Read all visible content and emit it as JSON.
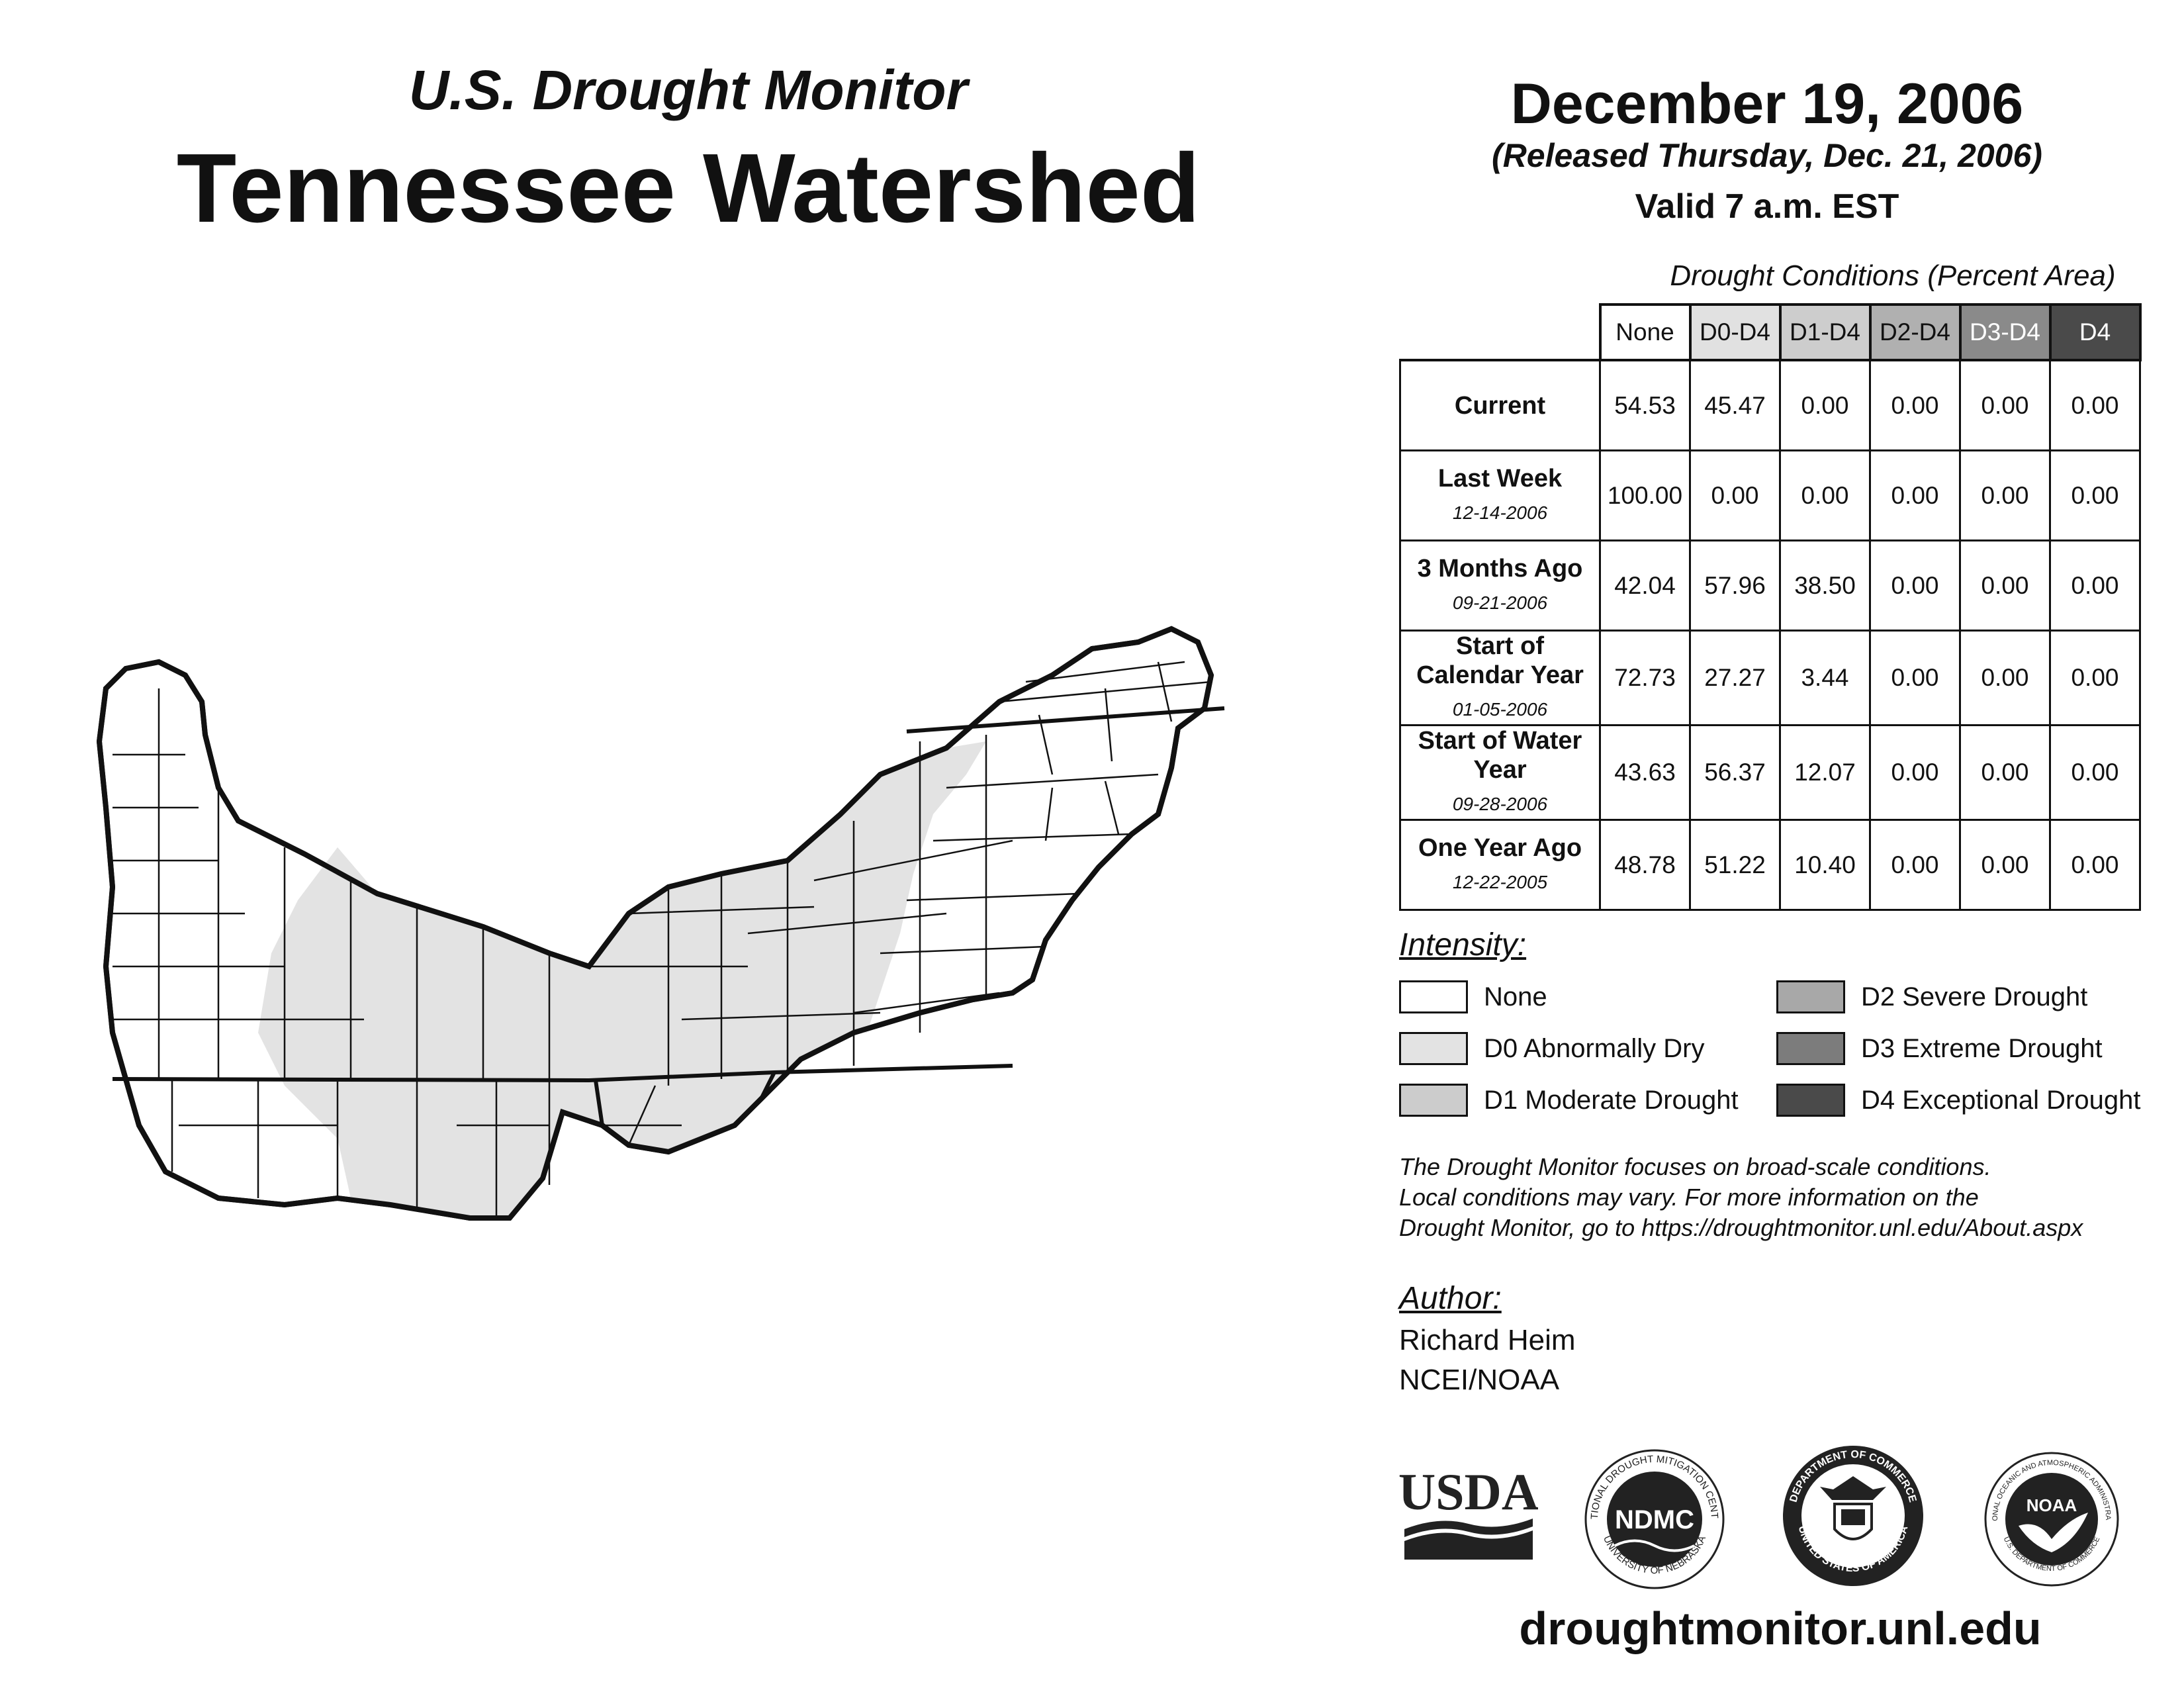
{
  "header": {
    "subtitle": "U.S. Drought Monitor",
    "title": "Tennessee Watershed"
  },
  "date_info": {
    "date": "December 19, 2006",
    "released": "(Released Thursday, Dec. 21, 2006)",
    "valid": "Valid 7 a.m. EST"
  },
  "conditions": {
    "title": "Drought Conditions (Percent Area)",
    "columns": [
      "None",
      "D0-D4",
      "D1-D4",
      "D2-D4",
      "D3-D4",
      "D4"
    ],
    "column_colors": [
      "#ffffff",
      "#e1e1e1",
      "#cdcdcd",
      "#b0b0b0",
      "#8a8a8a",
      "#4a4a4a"
    ],
    "column_text_colors": [
      "#111111",
      "#111111",
      "#111111",
      "#111111",
      "#ffffff",
      "#ffffff"
    ],
    "rows": [
      {
        "label": "Current",
        "date": "",
        "values": [
          "54.53",
          "45.47",
          "0.00",
          "0.00",
          "0.00",
          "0.00"
        ]
      },
      {
        "label": "Last Week",
        "date": "12-14-2006",
        "values": [
          "100.00",
          "0.00",
          "0.00",
          "0.00",
          "0.00",
          "0.00"
        ]
      },
      {
        "label": "3 Months Ago",
        "date": "09-21-2006",
        "values": [
          "42.04",
          "57.96",
          "38.50",
          "0.00",
          "0.00",
          "0.00"
        ]
      },
      {
        "label": "Start of Calendar Year",
        "date": "01-05-2006",
        "values": [
          "72.73",
          "27.27",
          "3.44",
          "0.00",
          "0.00",
          "0.00"
        ]
      },
      {
        "label": "Start of Water Year",
        "date": "09-28-2006",
        "values": [
          "43.63",
          "56.37",
          "12.07",
          "0.00",
          "0.00",
          "0.00"
        ]
      },
      {
        "label": "One Year Ago",
        "date": "12-22-2005",
        "values": [
          "48.78",
          "51.22",
          "10.40",
          "0.00",
          "0.00",
          "0.00"
        ]
      }
    ]
  },
  "intensity": {
    "heading": "Intensity:",
    "items": [
      {
        "label": "None",
        "color": "#ffffff"
      },
      {
        "label": "D0 Abnormally Dry",
        "color": "#e3e3e3"
      },
      {
        "label": "D1 Moderate Drought",
        "color": "#cccccc"
      },
      {
        "label": "D2 Severe Drought",
        "color": "#a8a8a8"
      },
      {
        "label": "D3 Extreme Drought",
        "color": "#7c7c7c"
      },
      {
        "label": "D4 Exceptional Drought",
        "color": "#4a4a4a"
      }
    ]
  },
  "note": {
    "line1": "The Drought Monitor focuses on broad-scale conditions.",
    "line2": "Local conditions may vary. For more information on the",
    "line3": "Drought Monitor, go to https://droughtmonitor.unl.edu/About.aspx"
  },
  "author": {
    "heading": "Author:",
    "name": "Richard Heim",
    "org": "NCEI/NOAA"
  },
  "logos": {
    "usda": "USDA",
    "ndmc": "NDMC",
    "ndmc_ring_top": "NATIONAL DROUGHT MITIGATION CENTER",
    "ndmc_ring_bottom": "UNIVERSITY OF NEBRASKA",
    "doc_ring_top": "DEPARTMENT OF COMMERCE",
    "doc_ring_bottom": "UNITED STATES OF AMERICA",
    "noaa": "NOAA",
    "noaa_ring_top": "NATIONAL OCEANIC AND ATMOSPHERIC ADMINISTRATION",
    "noaa_ring_bottom": "U.S. DEPARTMENT OF COMMERCE"
  },
  "map": {
    "region": "Tennessee Watershed",
    "category_colors": {
      "none": "#ffffff",
      "d0": "#e3e3e3"
    }
  },
  "footer": {
    "url": "droughtmonitor.unl.edu"
  }
}
